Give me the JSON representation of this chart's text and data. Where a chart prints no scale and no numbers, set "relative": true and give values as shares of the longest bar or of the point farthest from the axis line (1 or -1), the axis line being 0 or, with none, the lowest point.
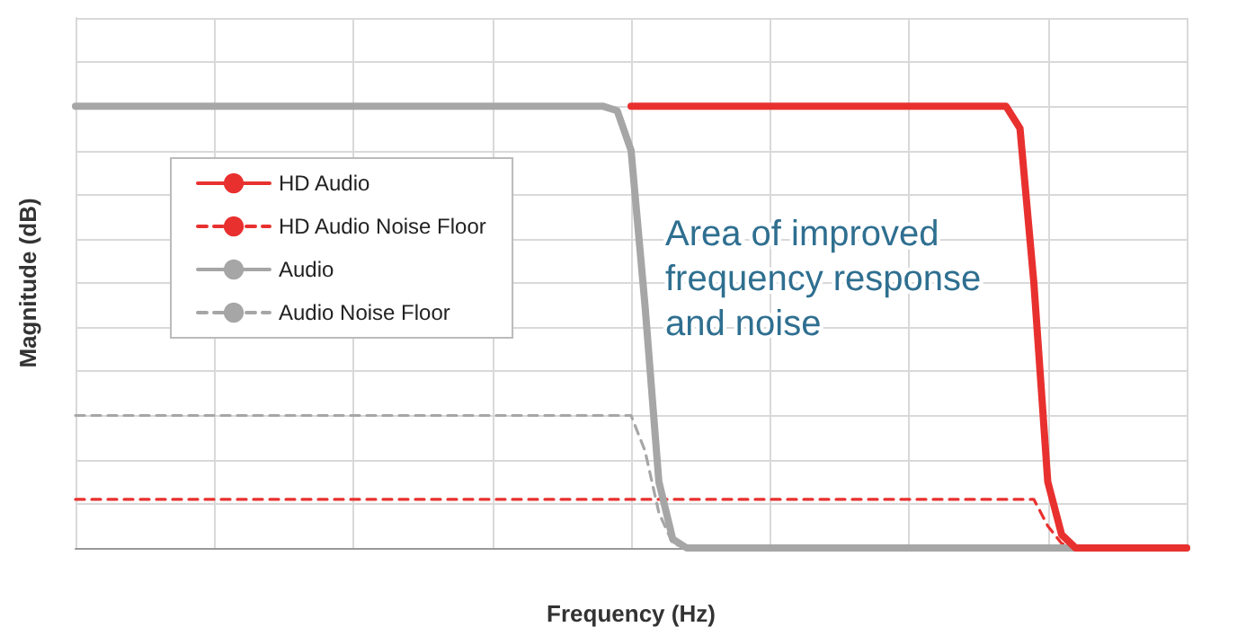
{
  "chart_data": {
    "type": "line",
    "relative": true,
    "xlabel": "Frequency (Hz)",
    "ylabel": "Magnitude (dB)",
    "grid": true,
    "legend": "left",
    "annotations": [
      "Area of improved frequency response and noise"
    ],
    "categories": [
      null,
      null,
      null,
      null,
      null,
      null,
      null,
      null,
      null,
      null,
      null,
      null,
      null,
      null,
      null,
      null,
      null,
      null,
      null,
      null,
      null,
      null,
      null,
      null,
      null,
      null,
      null,
      null,
      null,
      null,
      null,
      null,
      null,
      null,
      null,
      null,
      null,
      null,
      null,
      null,
      null,
      null,
      null,
      null,
      null,
      null,
      null,
      null,
      null,
      null,
      null,
      null,
      null,
      null,
      null,
      null,
      null,
      null,
      null,
      null,
      null,
      null,
      null,
      null,
      null,
      null,
      null,
      null,
      null,
      null,
      null,
      null,
      null,
      null,
      null,
      null,
      null,
      null,
      null,
      null,
      null
    ],
    "series": [
      {
        "name": "HD Audio",
        "color": "#e8312f",
        "line_style": "solid",
        "values": [
          null,
          null,
          null,
          null,
          null,
          null,
          null,
          null,
          null,
          null,
          null,
          null,
          null,
          null,
          null,
          null,
          null,
          null,
          null,
          null,
          null,
          null,
          null,
          null,
          null,
          null,
          null,
          null,
          null,
          null,
          null,
          null,
          null,
          null,
          null,
          null,
          null,
          null,
          null,
          null,
          1,
          1,
          1,
          1,
          1,
          1,
          1,
          1,
          1,
          1,
          1,
          1,
          1,
          1,
          1,
          1,
          1,
          1,
          1,
          1,
          1,
          1,
          1,
          1,
          1,
          1,
          1,
          1,
          0.95,
          0.6,
          0.15,
          0.03,
          0,
          0,
          0,
          0,
          0,
          0,
          0,
          0,
          0
        ]
      },
      {
        "name": "HD Audio Noise Floor",
        "color": "#e8312f",
        "line_style": "dashed",
        "values": [
          0.11,
          0.11,
          0.11,
          0.11,
          0.11,
          0.11,
          0.11,
          0.11,
          0.11,
          0.11,
          0.11,
          0.11,
          0.11,
          0.11,
          0.11,
          0.11,
          0.11,
          0.11,
          0.11,
          0.11,
          0.11,
          0.11,
          0.11,
          0.11,
          0.11,
          0.11,
          0.11,
          0.11,
          0.11,
          0.11,
          0.11,
          0.11,
          0.11,
          0.11,
          0.11,
          0.11,
          0.11,
          0.11,
          0.11,
          0.11,
          0.11,
          0.11,
          0.11,
          0.11,
          0.11,
          0.11,
          0.11,
          0.11,
          0.11,
          0.11,
          0.11,
          0.11,
          0.11,
          0.11,
          0.11,
          0.11,
          0.11,
          0.11,
          0.11,
          0.11,
          0.11,
          0.11,
          0.11,
          0.11,
          0.11,
          0.11,
          0.11,
          0.11,
          0.11,
          0.11,
          0.05,
          0.01,
          0,
          null,
          null,
          null,
          null,
          null,
          null,
          null,
          null
        ]
      },
      {
        "name": "Audio",
        "color": "#a6a6a6",
        "line_style": "solid",
        "values": [
          1,
          1,
          1,
          1,
          1,
          1,
          1,
          1,
          1,
          1,
          1,
          1,
          1,
          1,
          1,
          1,
          1,
          1,
          1,
          1,
          1,
          1,
          1,
          1,
          1,
          1,
          1,
          1,
          1,
          1,
          1,
          1,
          1,
          1,
          1,
          1,
          1,
          1,
          1,
          0.99,
          0.9,
          0.55,
          0.15,
          0.02,
          0,
          0,
          0,
          0,
          0,
          0,
          0,
          0,
          0,
          0,
          0,
          0,
          0,
          0,
          0,
          0,
          0,
          0,
          0,
          0,
          0,
          0,
          0,
          0,
          0,
          0,
          0,
          0,
          0,
          0,
          0,
          0,
          0,
          0,
          0,
          0,
          0
        ]
      },
      {
        "name": "Audio Noise Floor",
        "color": "#a6a6a6",
        "line_style": "dashed",
        "values": [
          0.3,
          0.3,
          0.3,
          0.3,
          0.3,
          0.3,
          0.3,
          0.3,
          0.3,
          0.3,
          0.3,
          0.3,
          0.3,
          0.3,
          0.3,
          0.3,
          0.3,
          0.3,
          0.3,
          0.3,
          0.3,
          0.3,
          0.3,
          0.3,
          0.3,
          0.3,
          0.3,
          0.3,
          0.3,
          0.3,
          0.3,
          0.3,
          0.3,
          0.3,
          0.3,
          0.3,
          0.3,
          0.3,
          0.3,
          0.3,
          0.3,
          0.22,
          0.08,
          0.01,
          0,
          null,
          null,
          null,
          null,
          null,
          null,
          null,
          null,
          null,
          null,
          null,
          null,
          null,
          null,
          null,
          null,
          null,
          null,
          null,
          null,
          null,
          null,
          null,
          null,
          null,
          null,
          null,
          null,
          null,
          null,
          null,
          null,
          null,
          null,
          null,
          null
        ]
      }
    ]
  }
}
